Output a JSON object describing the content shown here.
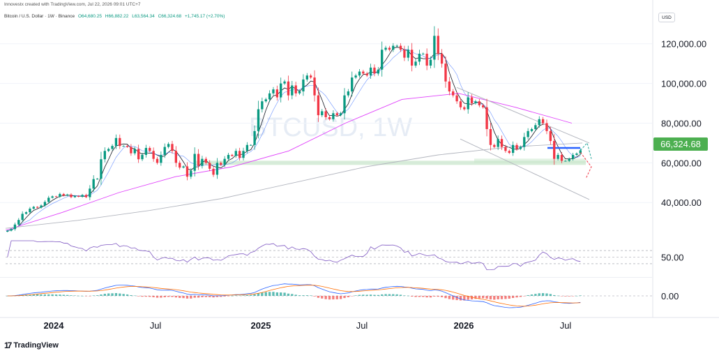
{
  "header": {
    "credit": "Innovestx created with TradingView.com, Jul 22, 2026 09:01 UTC+7"
  },
  "legend": {
    "symbol": "Bitcoin / U.S. Dollar · 1W · Binance",
    "open": "O64,680.25",
    "high": "H66,882.22",
    "low": "L63,564.34",
    "close": "C66,324.68",
    "change": "+1,745.17 (+2.70%)"
  },
  "currency_button": "USD",
  "watermark": "BTCUSD, 1W",
  "current_price_label": "66,324.68",
  "brand": {
    "logo_glyph": "17",
    "name": "TradingView"
  },
  "colors": {
    "up": "#089981",
    "down": "#f23645",
    "ma_fast": "#131722",
    "ma_mid": "#2962ff",
    "ma_slow": "#e040fb",
    "ma_long": "#b2b5be",
    "price_tag": "#4caf50",
    "support_zone": "#c8e6c9",
    "resistance_line": "#2962ff"
  },
  "chart_data": {
    "type": "candlestick",
    "symbol": "BTCUSD",
    "timeframe": "1W",
    "x_ticks": [
      "2024",
      "Jul",
      "2025",
      "Jul",
      "2026",
      "Jul"
    ],
    "y_ticks": [
      "120,000.00",
      "100,000.00",
      "80,000.00",
      "60,000.00",
      "40,000.00"
    ],
    "y_tick_values": [
      120000,
      100000,
      80000,
      60000,
      40000
    ],
    "ylim": [
      26000,
      128000
    ],
    "close": [
      25800,
      26600,
      28900,
      31200,
      34300,
      35100,
      36900,
      37800,
      37400,
      38500,
      40300,
      42400,
      43100,
      42900,
      44300,
      43500,
      44000,
      42700,
      43300,
      42900,
      43800,
      42700,
      47000,
      51800,
      52000,
      61800,
      66000,
      67000,
      68500,
      72500,
      68500,
      68500,
      68000,
      64800,
      67000,
      61800,
      64000,
      67500,
      66000,
      62000,
      60000,
      64000,
      68000,
      69500,
      66000,
      60000,
      57600,
      58200,
      53000,
      56000,
      64500,
      58500,
      62000,
      60000,
      57000,
      54000,
      60000,
      59000,
      62000,
      64000,
      63500,
      66000,
      62500,
      66000,
      69000,
      69000,
      76000,
      87000,
      91000,
      92000,
      95000,
      97000,
      93000,
      100000,
      101000,
      94000,
      99000,
      95000,
      96000,
      102000,
      104000,
      103000,
      94000,
      84000,
      86000,
      83000,
      82000,
      85000,
      84000,
      85000,
      94000,
      96000,
      103000,
      104000,
      106000,
      105000,
      104000,
      108000,
      105000,
      107000,
      117000,
      118000,
      117000,
      119000,
      119000,
      117000,
      113000,
      117000,
      109000,
      111000,
      115000,
      115000,
      109000,
      112000,
      124000,
      115000,
      110000,
      101000,
      96000,
      94000,
      91000,
      88000,
      87000,
      93000,
      90000,
      91000,
      89000,
      88000,
      77000,
      69000,
      68000,
      72000,
      68000,
      66000,
      65000,
      69000,
      67000,
      68000,
      73000,
      76000,
      77000,
      79000,
      82000,
      80000,
      76000,
      71000,
      62000,
      64000,
      61000,
      61000,
      62000,
      64000,
      64680,
      66320
    ],
    "overlays": {
      "ma_fast": {
        "period_note": "fast",
        "anchor_closes": true
      },
      "ma_slow_levels": [
        26000,
        35000,
        45000,
        53000,
        58000,
        66000,
        80000,
        92000,
        95000,
        88000,
        80000
      ],
      "ma_long_levels": [
        27000,
        31000,
        36000,
        42000,
        50000,
        58000,
        64000,
        68000,
        70000
      ]
    },
    "horizontal_levels": {
      "support": 60000,
      "resistance": 67500
    },
    "oscillator_levels": [
      "50.00",
      "0.00"
    ]
  }
}
